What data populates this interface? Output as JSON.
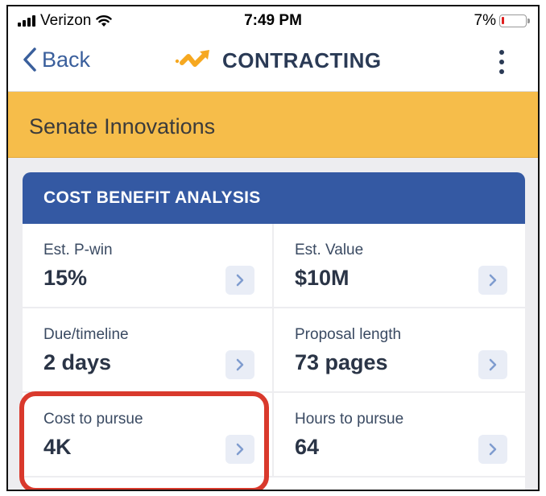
{
  "status_bar": {
    "carrier": "Verizon",
    "time": "7:49 PM",
    "battery": "7%"
  },
  "nav": {
    "back_label": "Back",
    "title": "CONTRACTING",
    "brand_color": "#f6a820"
  },
  "banner": {
    "title": "Senate Innovations",
    "color": "#f6bd4a"
  },
  "card": {
    "title": "COST BENEFIT ANALYSIS",
    "header_color": "#3459a3",
    "items": [
      {
        "label": "Est. P-win",
        "value": "15%"
      },
      {
        "label": "Est. Value",
        "value": "$10M"
      },
      {
        "label": "Due/timeline",
        "value": "2 days"
      },
      {
        "label": "Proposal length",
        "value": "73 pages"
      },
      {
        "label": "Cost to pursue",
        "value": "4K"
      },
      {
        "label": "Hours to pursue",
        "value": "64"
      }
    ]
  },
  "highlight_color": "#d9392c"
}
